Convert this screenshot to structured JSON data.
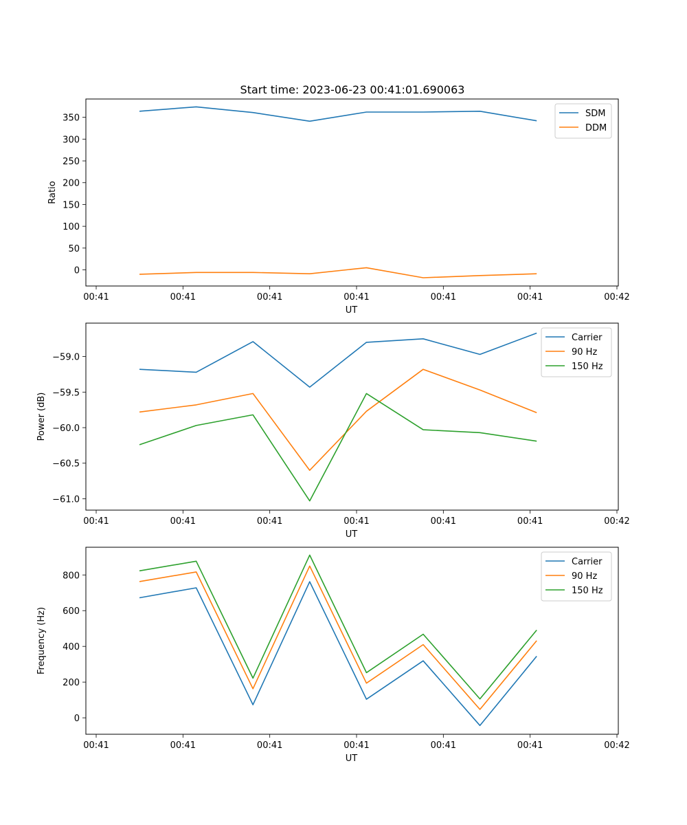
{
  "figure": {
    "title": "Start time: 2023-06-23 00:41:01.690063"
  },
  "chart_data": [
    {
      "type": "line",
      "title": "Start time: 2023-06-23 00:41:01.690063",
      "xlabel": "UT",
      "ylabel": "Ratio",
      "x_tick_labels": [
        "00:41",
        "00:41",
        "00:41",
        "00:41",
        "00:41",
        "00:41",
        "00:42"
      ],
      "xlim": [
        -0.4,
        8.6
      ],
      "ylim": [
        -37,
        392
      ],
      "y_ticks": [
        0,
        50,
        100,
        150,
        200,
        250,
        300,
        350
      ],
      "y_tick_labels": [
        "0",
        "50",
        "100",
        "150",
        "200",
        "250",
        "300",
        "350"
      ],
      "x": [
        1,
        2,
        3,
        4,
        5,
        6,
        7,
        8
      ],
      "legend_position": "upper right",
      "series": [
        {
          "name": "SDM",
          "color": "#1f77b4",
          "values": [
            364,
            374,
            361,
            341,
            362,
            362,
            364,
            342
          ]
        },
        {
          "name": "DDM",
          "color": "#ff7f0e",
          "values": [
            -10,
            -6,
            -6,
            -9,
            5,
            -18,
            -13,
            -9
          ]
        }
      ]
    },
    {
      "type": "line",
      "xlabel": "UT",
      "ylabel": "Power (dB)",
      "x_tick_labels": [
        "00:41",
        "00:41",
        "00:41",
        "00:41",
        "00:41",
        "00:41",
        "00:42"
      ],
      "xlim": [
        -0.4,
        8.6
      ],
      "ylim": [
        -61.16,
        -58.53
      ],
      "y_ticks": [
        -61.0,
        -60.5,
        -60.0,
        -59.5,
        -59.0
      ],
      "y_tick_labels": [
        "−61.0",
        "−60.5",
        "−60.0",
        "−59.5",
        "−59.0"
      ],
      "x": [
        1,
        2,
        3,
        4,
        5,
        6,
        7,
        8
      ],
      "legend_position": "upper right",
      "series": [
        {
          "name": "Carrier",
          "color": "#1f77b4",
          "values": [
            -59.18,
            -59.22,
            -58.79,
            -59.43,
            -58.8,
            -58.75,
            -58.97,
            -58.67
          ]
        },
        {
          "name": "90 Hz",
          "color": "#ff7f0e",
          "values": [
            -59.78,
            -59.68,
            -59.52,
            -60.6,
            -59.77,
            -59.18,
            -59.47,
            -59.79
          ]
        },
        {
          "name": "150 Hz",
          "color": "#2ca02c",
          "values": [
            -60.24,
            -59.97,
            -59.82,
            -61.03,
            -59.52,
            -60.03,
            -60.07,
            -60.19
          ]
        }
      ]
    },
    {
      "type": "line",
      "xlabel": "UT",
      "ylabel": "Frequency (Hz)",
      "x_tick_labels": [
        "00:41",
        "00:41",
        "00:41",
        "00:41",
        "00:41",
        "00:41",
        "00:42"
      ],
      "xlim": [
        -0.4,
        8.6
      ],
      "ylim": [
        -92,
        955
      ],
      "y_ticks": [
        0,
        200,
        400,
        600,
        800
      ],
      "y_tick_labels": [
        "0",
        "200",
        "400",
        "600",
        "800"
      ],
      "x": [
        1,
        2,
        3,
        4,
        5,
        6,
        7,
        8
      ],
      "legend_position": "upper right",
      "series": [
        {
          "name": "Carrier",
          "color": "#1f77b4",
          "values": [
            672,
            728,
            73,
            762,
            104,
            319,
            -43,
            345
          ]
        },
        {
          "name": "90 Hz",
          "color": "#ff7f0e",
          "values": [
            763,
            817,
            163,
            850,
            194,
            410,
            47,
            432
          ]
        },
        {
          "name": "150 Hz",
          "color": "#2ca02c",
          "values": [
            823,
            877,
            222,
            911,
            253,
            468,
            106,
            491
          ]
        }
      ]
    }
  ]
}
